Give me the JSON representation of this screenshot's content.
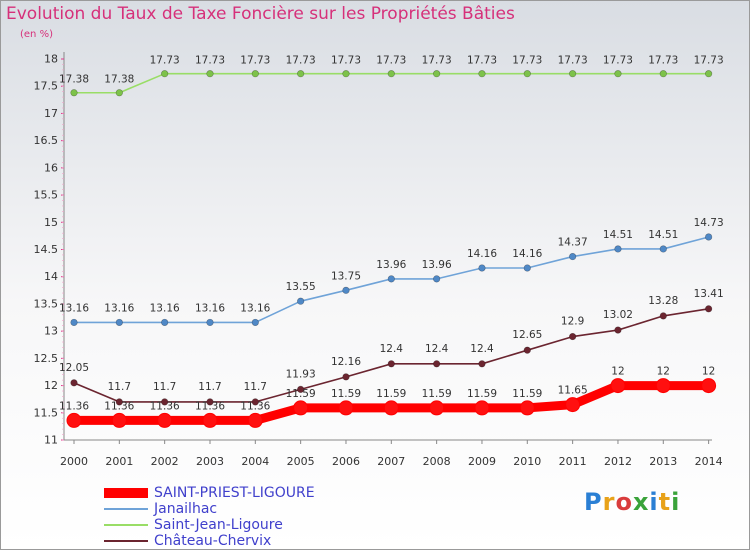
{
  "header": {
    "title": "Evolution du Taux de Taxe Foncière sur les Propriétés Bâties",
    "unit": "(en %)"
  },
  "logo": {
    "text": "Proxiti",
    "colors": [
      "#2a7fd4",
      "#e8a21a",
      "#d93c3c",
      "#3aa33a",
      "#2a7fd4",
      "#e8a21a",
      "#3aa33a"
    ]
  },
  "chart_data": {
    "type": "line",
    "title": "Evolution du Taux de Taxe Foncière sur les Propriétés Bâties",
    "ylabel": "(en %)",
    "xlabel": "",
    "x": [
      "2000",
      "2001",
      "2002",
      "2003",
      "2004",
      "2005",
      "2006",
      "2007",
      "2008",
      "2009",
      "2010",
      "2011",
      "2012",
      "2013",
      "2014"
    ],
    "ylim": [
      11,
      18
    ],
    "yticks": [
      "11",
      "11.5",
      "12",
      "12.5",
      "13",
      "13.5",
      "14",
      "14.5",
      "15",
      "15.5",
      "16",
      "16.5",
      "17",
      "17.5",
      "18"
    ],
    "grid": false,
    "legend": "bottom-left",
    "series": [
      {
        "name": "SAINT-PRIEST-LIGOURE",
        "color": "#ff0000",
        "marker": "#ff1010",
        "values": [
          11.36,
          11.36,
          11.36,
          11.36,
          11.36,
          11.59,
          11.59,
          11.59,
          11.59,
          11.59,
          11.59,
          11.65,
          12,
          12,
          12
        ],
        "labels": [
          "11.36",
          "11.36",
          "11.36",
          "11.36",
          "11.36",
          "11.59",
          "11.59",
          "11.59",
          "11.59",
          "11.59",
          "11.59",
          "11.65",
          "12",
          "12",
          "12"
        ]
      },
      {
        "name": "Janailhac",
        "color": "#6fa3d8",
        "marker": "#4f88c6",
        "values": [
          13.16,
          13.16,
          13.16,
          13.16,
          13.16,
          13.55,
          13.75,
          13.96,
          13.96,
          14.16,
          14.16,
          14.37,
          14.51,
          14.51,
          14.73
        ],
        "labels": [
          "13.16",
          "13.16",
          "13.16",
          "13.16",
          "13.16",
          "13.55",
          "13.75",
          "13.96",
          "13.96",
          "14.16",
          "14.16",
          "14.37",
          "14.51",
          "14.51",
          "14.73"
        ]
      },
      {
        "name": "Saint-Jean-Ligoure",
        "color": "#99dd66",
        "marker": "#7dc24a",
        "values": [
          17.38,
          17.38,
          17.73,
          17.73,
          17.73,
          17.73,
          17.73,
          17.73,
          17.73,
          17.73,
          17.73,
          17.73,
          17.73,
          17.73,
          17.73
        ],
        "labels": [
          "17.38",
          "17.38",
          "17.73",
          "17.73",
          "17.73",
          "17.73",
          "17.73",
          "17.73",
          "17.73",
          "17.73",
          "17.73",
          "17.73",
          "17.73",
          "17.73",
          "17.73"
        ]
      },
      {
        "name": "Château-Chervix",
        "color": "#6b2530",
        "marker": "#6b2530",
        "values": [
          12.05,
          11.7,
          11.7,
          11.7,
          11.7,
          11.93,
          12.16,
          12.4,
          12.4,
          12.4,
          12.65,
          12.9,
          13.02,
          13.28,
          13.41
        ],
        "labels": [
          "12.05",
          "11.7",
          "11.7",
          "11.7",
          "11.7",
          "11.93",
          "12.16",
          "12.4",
          "12.4",
          "12.4",
          "12.65",
          "12.9",
          "13.02",
          "13.28",
          "13.41"
        ]
      }
    ]
  }
}
